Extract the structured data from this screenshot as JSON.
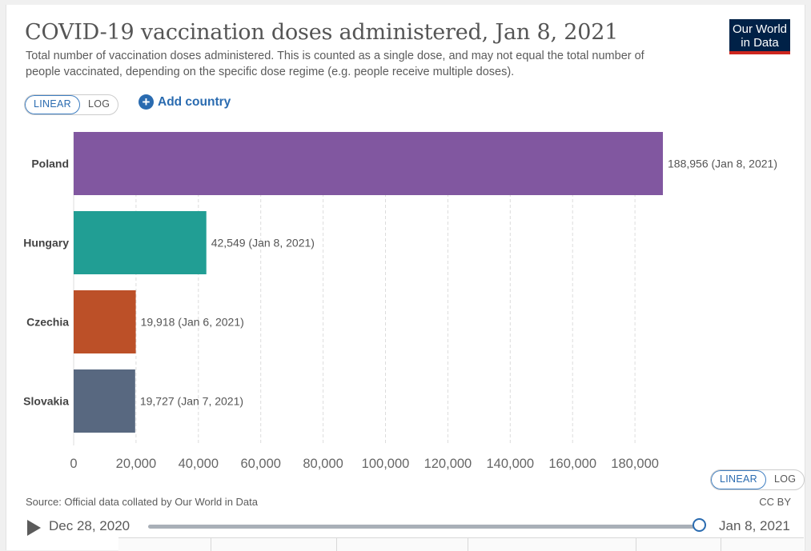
{
  "header": {
    "title": "COVID-19 vaccination doses administered, Jan 8, 2021",
    "subtitle": "Total number of vaccination doses administered. This is counted as a single dose, and may not equal the total number of people vaccinated, depending on the specific dose regime (e.g. people receive multiple doses).",
    "logo_line1": "Our World",
    "logo_line2": "in Data"
  },
  "controls": {
    "scale_linear": "LINEAR",
    "scale_log": "LOG",
    "add_country": "Add country",
    "active_scale": "linear"
  },
  "chart_data": {
    "type": "bar",
    "orientation": "horizontal",
    "title": "COVID-19 vaccination doses administered, Jan 8, 2021",
    "categories": [
      "Poland",
      "Hungary",
      "Czechia",
      "Slovakia"
    ],
    "values": [
      188956,
      42549,
      19918,
      19727
    ],
    "value_labels": [
      "188,956 (Jan 8, 2021)",
      "42,549 (Jan 8, 2021)",
      "19,918 (Jan 6, 2021)",
      "19,727 (Jan 7, 2021)"
    ],
    "colors": [
      "#8157a0",
      "#219e94",
      "#bc5028",
      "#586880"
    ],
    "xlim": [
      0,
      188956
    ],
    "xticks": [
      0,
      20000,
      40000,
      60000,
      80000,
      100000,
      120000,
      140000,
      160000,
      180000
    ],
    "xtick_labels": [
      "0",
      "20,000",
      "40,000",
      "60,000",
      "80,000",
      "100,000",
      "120,000",
      "140,000",
      "160,000",
      "180,000"
    ],
    "grid": true,
    "xlabel": "",
    "ylabel": ""
  },
  "footer": {
    "source": "Source: Official data collated by Our World in Data",
    "license": "CC BY"
  },
  "timeline": {
    "start": "Dec 28, 2020",
    "end": "Jan 8, 2021",
    "position": 1.0
  }
}
